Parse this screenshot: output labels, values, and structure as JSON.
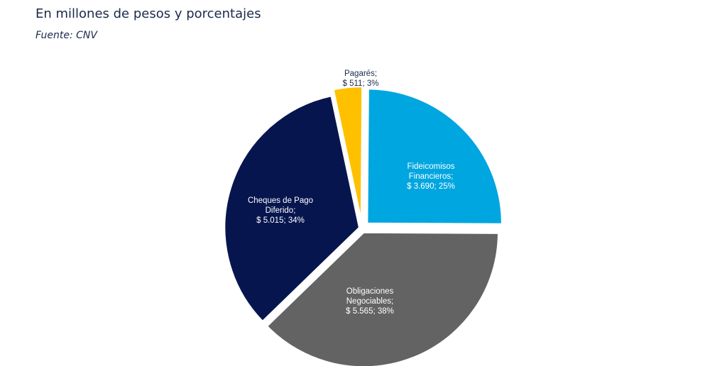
{
  "header": {
    "subtitle": "En millones de pesos y porcentajes",
    "source": "Fuente: CNV"
  },
  "chart_data": {
    "type": "pie",
    "title": "",
    "slices": [
      {
        "label_lines": [
          "Pagarés;",
          "$ 511; 3%"
        ],
        "value": 511,
        "percent": 3,
        "color": "#ffc000"
      },
      {
        "label_lines": [
          "Fideicomisos",
          "Financieros;",
          "$ 3.690; 25%"
        ],
        "value": 3690,
        "percent": 25,
        "color": "#00a6e0"
      },
      {
        "label_lines": [
          "Obligaciones",
          "Negociables;",
          "$ 5.565; 38%"
        ],
        "value": 5565,
        "percent": 38,
        "color": "#636363"
      },
      {
        "label_lines": [
          "Cheques de Pago",
          "Diferido;",
          "$ 5.015; 34%"
        ],
        "value": 5015,
        "percent": 34,
        "color": "#07154f"
      }
    ],
    "label_colors": {
      "dark": "#1b2a4a",
      "light": "#ffffff"
    }
  }
}
